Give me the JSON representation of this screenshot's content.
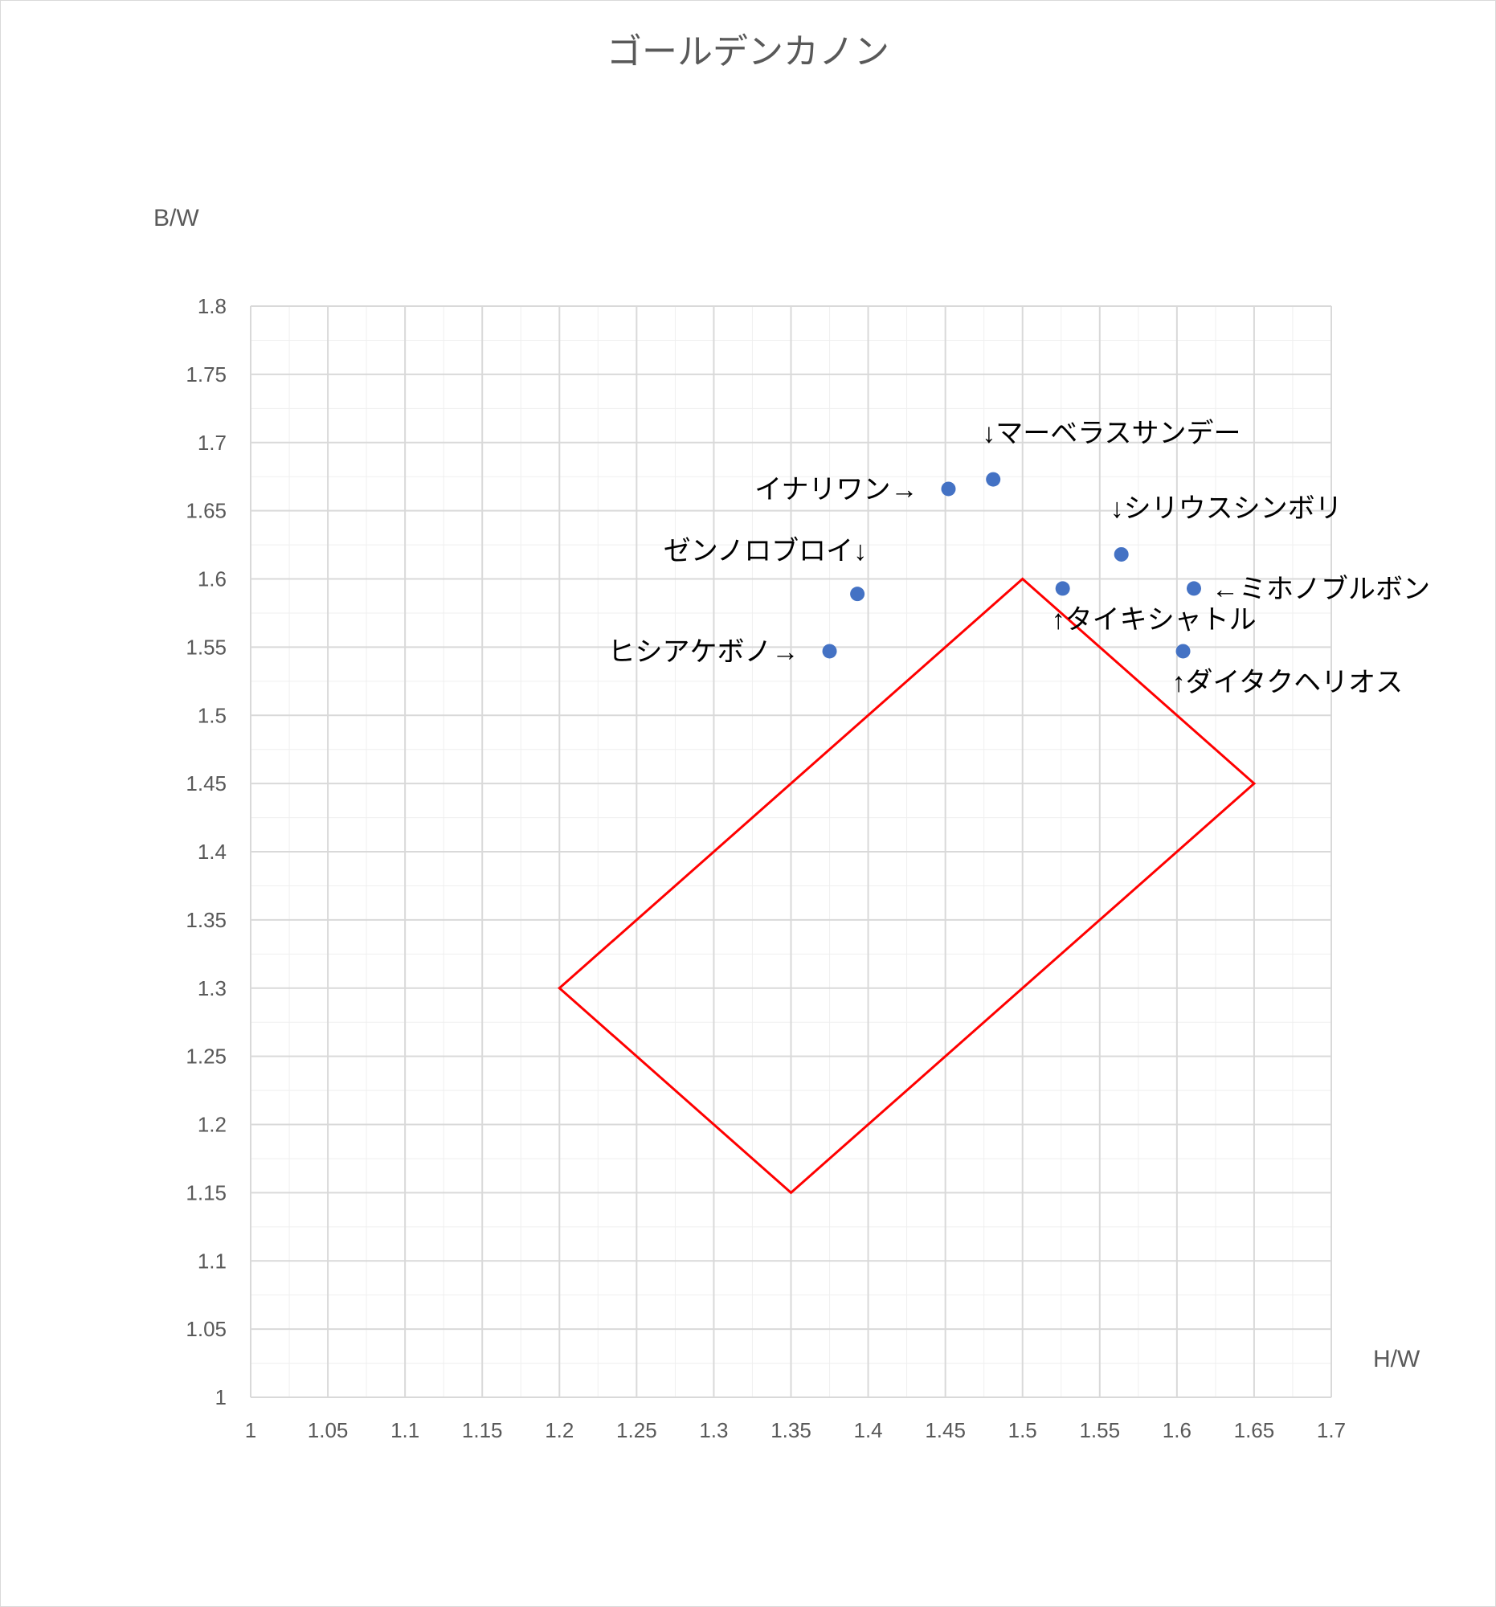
{
  "chart_data": {
    "type": "scatter",
    "title": "ゴールデンカノン",
    "xlabel": "H/W",
    "ylabel": "B/W",
    "xlim": [
      1,
      1.7
    ],
    "ylim": [
      1,
      1.8
    ],
    "x_major_step": 0.05,
    "y_major_step": 0.05,
    "grid": true,
    "x_tick_labels": [
      "1",
      "1.05",
      "1.1",
      "1.15",
      "1.2",
      "1.25",
      "1.3",
      "1.35",
      "1.4",
      "1.45",
      "1.5",
      "1.55",
      "1.6",
      "1.65",
      "1.7"
    ],
    "y_tick_labels": [
      "1",
      "1.05",
      "1.1",
      "1.15",
      "1.2",
      "1.25",
      "1.3",
      "1.35",
      "1.4",
      "1.45",
      "1.5",
      "1.55",
      "1.6",
      "1.65",
      "1.7",
      "1.75",
      "1.8"
    ],
    "points": [
      {
        "x": 1.375,
        "y": 1.547,
        "label": "ヒシアケボノ→",
        "label_side": "left"
      },
      {
        "x": 1.393,
        "y": 1.589,
        "label": "ゼンノロブロイ↓",
        "label_side": "above-left"
      },
      {
        "x": 1.452,
        "y": 1.666,
        "label": "イナリワン→",
        "label_side": "left"
      },
      {
        "x": 1.481,
        "y": 1.673,
        "label": "↓マーベラスサンデー",
        "label_side": "above-right"
      },
      {
        "x": 1.526,
        "y": 1.593,
        "label": "↑タイキシャトル",
        "label_side": "below-right"
      },
      {
        "x": 1.564,
        "y": 1.618,
        "label": "↓シリウスシンボリ",
        "label_side": "above-right"
      },
      {
        "x": 1.611,
        "y": 1.593,
        "label": "←ミホノブルボン",
        "label_side": "right"
      },
      {
        "x": 1.604,
        "y": 1.547,
        "label": "↑ダイタクヘリオス",
        "label_side": "below-right"
      }
    ],
    "shape": {
      "type": "polygon",
      "vertices": [
        [
          1.5,
          1.6
        ],
        [
          1.65,
          1.45
        ],
        [
          1.35,
          1.15
        ],
        [
          1.2,
          1.3
        ]
      ]
    },
    "colors": {
      "point": "#4472c4",
      "shape": "#ff0000",
      "grid_major": "#d9d9d9",
      "grid_minor": "#efefef",
      "text": "#595959"
    }
  }
}
